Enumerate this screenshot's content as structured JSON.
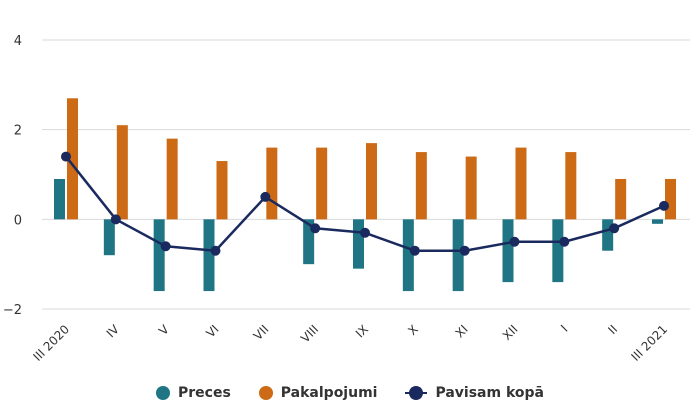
{
  "chart_data": {
    "type": "bar",
    "categories": [
      "III 2020",
      "IV",
      "V",
      "VI",
      "VII",
      "VIII",
      "IX",
      "X",
      "XI",
      "XII",
      "I",
      "II",
      "III 2021"
    ],
    "series": [
      {
        "name": "Preces",
        "type": "bar",
        "color": "#1f7583",
        "values": [
          0.9,
          -0.8,
          -1.6,
          -1.6,
          0.0,
          -1.0,
          -1.1,
          -1.6,
          -1.6,
          -1.4,
          -1.4,
          -0.7,
          -0.1
        ]
      },
      {
        "name": "Pakalpojumi",
        "type": "bar",
        "color": "#cc6a16",
        "values": [
          2.7,
          2.1,
          1.8,
          1.3,
          1.6,
          1.6,
          1.7,
          1.5,
          1.4,
          1.6,
          1.5,
          0.9,
          0.9
        ]
      },
      {
        "name": "Pavisam kopā",
        "type": "line",
        "color": "#1b2a5e",
        "values": [
          1.4,
          0.0,
          -0.6,
          -0.7,
          0.5,
          -0.2,
          -0.3,
          -0.7,
          -0.7,
          -0.5,
          -0.5,
          -0.2,
          0.3
        ]
      }
    ],
    "yticks": [
      "4",
      "2",
      "0",
      "−2"
    ],
    "ylim": [
      -2,
      4
    ],
    "grid": true,
    "legend_position": "bottom"
  }
}
